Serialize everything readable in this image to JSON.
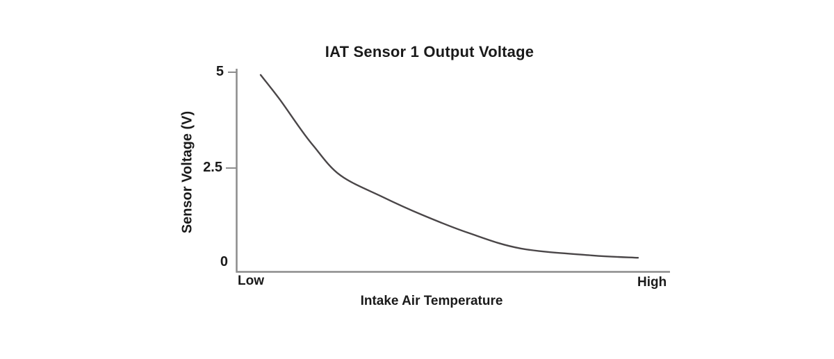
{
  "title": "IAT Sensor 1 Output Voltage",
  "y_axis": {
    "label": "Sensor Voltage (V)",
    "ticks": [
      "5",
      "2.5",
      "0"
    ]
  },
  "x_axis": {
    "label": "Intake Air Temperature",
    "left_label": "Low",
    "right_label": "High"
  },
  "colors": {
    "curve": "#4a4648",
    "axis": "#8c8c8c",
    "text": "#1a1a1a",
    "background": "#ffffff"
  },
  "chart_data": {
    "type": "line",
    "title": "IAT Sensor 1 Output Voltage",
    "xlabel": "Intake Air Temperature",
    "ylabel": "Sensor Voltage (V)",
    "x_range_labels": [
      "Low",
      "High"
    ],
    "y_ticks": [
      0,
      2.5,
      5
    ],
    "ylim": [
      0,
      5
    ],
    "grid": false,
    "legend": "none",
    "curve_shape": "exponential-decay",
    "points": [
      {
        "x_frac": 0.0,
        "voltage": 4.93
      },
      {
        "x_frac": 0.05,
        "voltage": 4.3
      },
      {
        "x_frac": 0.1,
        "voltage": 3.6
      },
      {
        "x_frac": 0.14,
        "voltage": 3.08
      },
      {
        "x_frac": 0.21,
        "voltage": 2.32
      },
      {
        "x_frac": 0.32,
        "voltage": 1.76
      },
      {
        "x_frac": 0.43,
        "voltage": 1.27
      },
      {
        "x_frac": 0.55,
        "voltage": 0.81
      },
      {
        "x_frac": 0.69,
        "voltage": 0.4
      },
      {
        "x_frac": 0.88,
        "voltage": 0.22
      },
      {
        "x_frac": 1.0,
        "voltage": 0.16
      }
    ]
  }
}
